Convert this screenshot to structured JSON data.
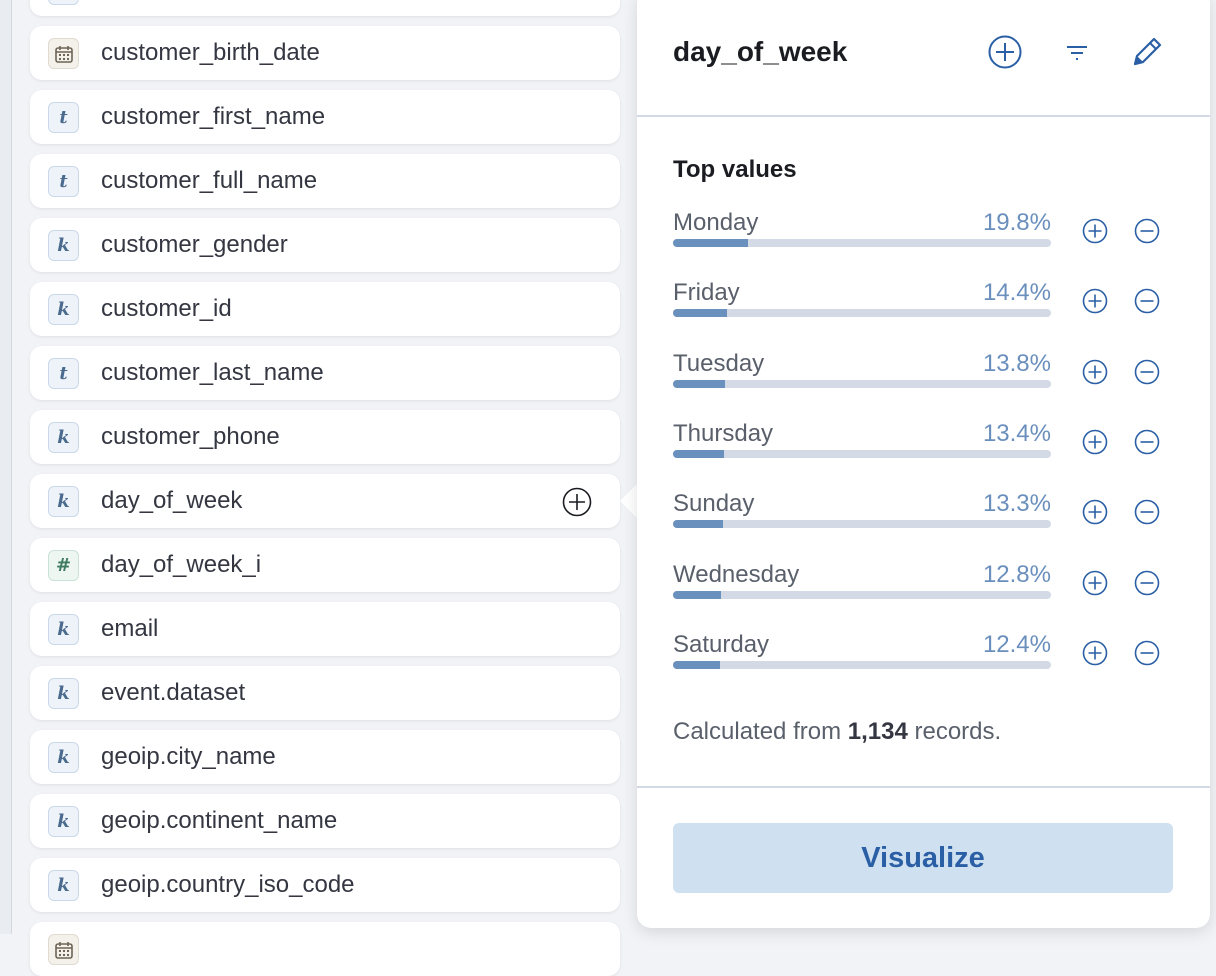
{
  "fields": [
    {
      "name": "",
      "type": "k"
    },
    {
      "name": "customer_birth_date",
      "type": "date"
    },
    {
      "name": "customer_first_name",
      "type": "t"
    },
    {
      "name": "customer_full_name",
      "type": "t"
    },
    {
      "name": "customer_gender",
      "type": "k"
    },
    {
      "name": "customer_id",
      "type": "k"
    },
    {
      "name": "customer_last_name",
      "type": "t"
    },
    {
      "name": "customer_phone",
      "type": "k"
    },
    {
      "name": "day_of_week",
      "type": "k"
    },
    {
      "name": "day_of_week_i",
      "type": "#"
    },
    {
      "name": "email",
      "type": "k"
    },
    {
      "name": "event.dataset",
      "type": "k"
    },
    {
      "name": "geoip.city_name",
      "type": "k"
    },
    {
      "name": "geoip.continent_name",
      "type": "k"
    },
    {
      "name": "geoip.country_iso_code",
      "type": "k"
    },
    {
      "name": "",
      "type": "date"
    }
  ],
  "popover": {
    "title": "day_of_week",
    "top_values_label": "Top values",
    "values": [
      {
        "label": "Monday",
        "pct": "19.8%",
        "fraction": 0.198
      },
      {
        "label": "Friday",
        "pct": "14.4%",
        "fraction": 0.144
      },
      {
        "label": "Tuesday",
        "pct": "13.8%",
        "fraction": 0.138
      },
      {
        "label": "Thursday",
        "pct": "13.4%",
        "fraction": 0.134
      },
      {
        "label": "Sunday",
        "pct": "13.3%",
        "fraction": 0.133
      },
      {
        "label": "Wednesday",
        "pct": "12.8%",
        "fraction": 0.128
      },
      {
        "label": "Saturday",
        "pct": "12.4%",
        "fraction": 0.124
      }
    ],
    "calc_prefix": "Calculated from ",
    "calc_count": "1,134",
    "calc_suffix": " records.",
    "visualize_label": "Visualize"
  },
  "colors": {
    "accent": "#2a5fa5",
    "bar_fill": "#6a91bd",
    "bar_track": "#d3dae6",
    "button_bg": "#cfe0f1"
  }
}
